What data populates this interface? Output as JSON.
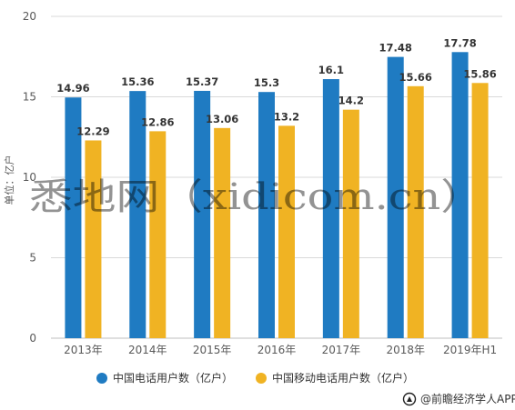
{
  "chart_data": {
    "type": "bar",
    "categories": [
      "2013年",
      "2014年",
      "2015年",
      "2016年",
      "2017年",
      "2018年",
      "2019年H1"
    ],
    "series": [
      {
        "name": "中国电话用户数（亿户）",
        "values": [
          14.96,
          15.36,
          15.37,
          15.3,
          16.1,
          17.48,
          17.78
        ],
        "color": "#1f7bc2"
      },
      {
        "name": "中国移动电话用户数（亿户）",
        "values": [
          12.29,
          12.86,
          13.06,
          13.2,
          14.2,
          15.66,
          15.86
        ],
        "color": "#f0b323"
      }
    ],
    "value_labels": [
      [
        "14.96",
        "15.36",
        "15.37",
        "15.3",
        "16.1",
        "17.48",
        "17.78"
      ],
      [
        "12.29",
        "12.86",
        "13.06",
        "13.2",
        "14.2",
        "15.66",
        "15.86"
      ]
    ],
    "title": "",
    "xlabel": "",
    "ylabel": "单位：亿户",
    "ylim": [
      0,
      20
    ],
    "yticks": [
      0,
      5,
      10,
      15,
      20
    ],
    "ytick_labels": [
      "0",
      "5",
      "10",
      "15",
      "20"
    ],
    "grid": true,
    "legend_position": "bottom"
  },
  "watermark": "悉地网（xidicom.cn）",
  "source": "@前瞻经济学人APP",
  "source_icon": "qianzhan-logo-icon"
}
